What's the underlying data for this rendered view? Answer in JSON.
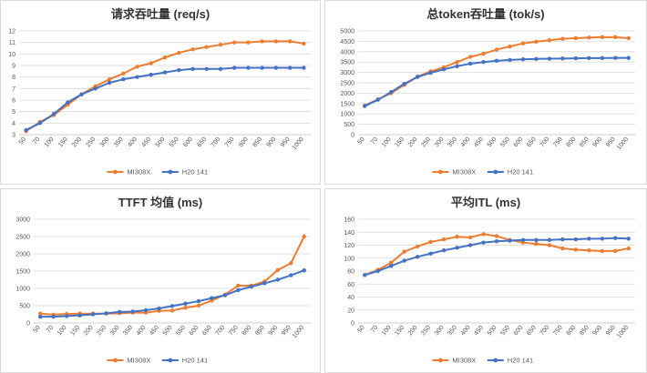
{
  "chart_data": [
    {
      "type": "line",
      "title": "请求吞吐量 (req/s)",
      "x_categories": [
        "50",
        "70",
        "100",
        "150",
        "200",
        "250",
        "300",
        "350",
        "400",
        "450",
        "500",
        "550",
        "600",
        "650",
        "700",
        "750",
        "800",
        "850",
        "900",
        "950",
        "1000"
      ],
      "y_ticks": [
        "3",
        "4",
        "5",
        "6",
        "7",
        "8",
        "9",
        "10",
        "11",
        "12"
      ],
      "ylim": [
        3,
        12
      ],
      "grid": true,
      "legend_position": "bottom",
      "series": [
        {
          "name": "MI308X",
          "color": "#ED7D31",
          "values": [
            3.3,
            4.1,
            4.7,
            5.6,
            6.5,
            7.2,
            7.8,
            8.3,
            8.9,
            9.2,
            9.7,
            10.1,
            10.4,
            10.6,
            10.8,
            11.0,
            11.0,
            11.1,
            11.1,
            11.1,
            10.9
          ]
        },
        {
          "name": "H20 141",
          "color": "#4472C4",
          "values": [
            3.4,
            4.0,
            4.8,
            5.8,
            6.5,
            7.0,
            7.5,
            7.8,
            8.0,
            8.2,
            8.4,
            8.6,
            8.7,
            8.7,
            8.7,
            8.8,
            8.8,
            8.8,
            8.8,
            8.8,
            8.8
          ]
        }
      ]
    },
    {
      "type": "line",
      "title": "总token吞吐量 (tok/s)",
      "x_categories": [
        "50",
        "70",
        "100",
        "150",
        "200",
        "250",
        "300",
        "350",
        "400",
        "450",
        "500",
        "550",
        "600",
        "650",
        "700",
        "750",
        "800",
        "850",
        "900",
        "950",
        "1000"
      ],
      "y_ticks": [
        "0",
        "500",
        "1000",
        "1500",
        "2000",
        "2500",
        "3000",
        "3500",
        "4000",
        "4500",
        "5000"
      ],
      "ylim": [
        0,
        5000
      ],
      "grid": true,
      "legend_position": "bottom",
      "series": [
        {
          "name": "MI308X",
          "color": "#ED7D31",
          "values": [
            1400,
            1700,
            2000,
            2400,
            2800,
            3050,
            3250,
            3500,
            3750,
            3900,
            4100,
            4250,
            4400,
            4480,
            4550,
            4620,
            4650,
            4680,
            4700,
            4700,
            4650
          ]
        },
        {
          "name": "H20 141",
          "color": "#4472C4",
          "values": [
            1380,
            1680,
            2050,
            2450,
            2780,
            2980,
            3150,
            3300,
            3420,
            3500,
            3560,
            3600,
            3630,
            3650,
            3660,
            3670,
            3680,
            3690,
            3690,
            3700,
            3700
          ]
        }
      ]
    },
    {
      "type": "line",
      "title": "TTFT 均值 (ms)",
      "x_categories": [
        "50",
        "70",
        "100",
        "150",
        "200",
        "250",
        "300",
        "350",
        "400",
        "450",
        "500",
        "550",
        "600",
        "650",
        "700",
        "750",
        "800",
        "850",
        "900",
        "950",
        "1000"
      ],
      "y_ticks": [
        "0",
        "500",
        "1000",
        "1500",
        "2000",
        "2500",
        "3000"
      ],
      "ylim": [
        0,
        3000
      ],
      "grid": true,
      "legend_position": "bottom",
      "series": [
        {
          "name": "MI308X",
          "color": "#ED7D31",
          "values": [
            270,
            240,
            260,
            270,
            270,
            270,
            280,
            300,
            300,
            350,
            360,
            440,
            500,
            650,
            820,
            1080,
            1080,
            1200,
            1530,
            1730,
            2500
          ]
        },
        {
          "name": "H20 141",
          "color": "#4472C4",
          "values": [
            180,
            180,
            200,
            220,
            250,
            280,
            320,
            330,
            370,
            420,
            490,
            560,
            630,
            720,
            800,
            950,
            1050,
            1150,
            1250,
            1380,
            1520
          ]
        }
      ]
    },
    {
      "type": "line",
      "title": "平均ITL (ms)",
      "x_categories": [
        "50",
        "70",
        "100",
        "150",
        "200",
        "250",
        "300",
        "350",
        "400",
        "450",
        "500",
        "550",
        "600",
        "650",
        "700",
        "750",
        "800",
        "850",
        "900",
        "950",
        "1000"
      ],
      "y_ticks": [
        "0",
        "20",
        "40",
        "60",
        "80",
        "100",
        "120",
        "140",
        "160"
      ],
      "ylim": [
        0,
        160
      ],
      "grid": true,
      "legend_position": "bottom",
      "series": [
        {
          "name": "MI308X",
          "color": "#ED7D31",
          "values": [
            74,
            82,
            93,
            110,
            118,
            125,
            129,
            133,
            132,
            137,
            134,
            128,
            124,
            122,
            120,
            115,
            113,
            112,
            111,
            111,
            115
          ]
        },
        {
          "name": "H20 141",
          "color": "#4472C4",
          "values": [
            74,
            80,
            88,
            96,
            102,
            107,
            112,
            116,
            120,
            124,
            126,
            127,
            128,
            128,
            128,
            129,
            129,
            130,
            130,
            131,
            130
          ]
        }
      ]
    }
  ]
}
